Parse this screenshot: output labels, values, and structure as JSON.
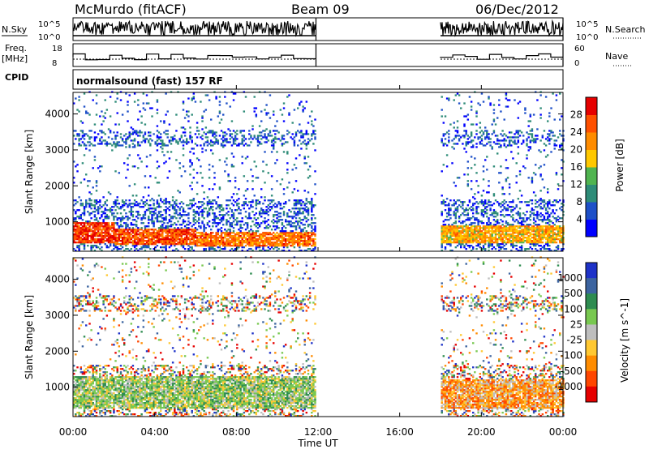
{
  "header": {
    "station": "McMurdo (fitACF)",
    "beam": "Beam 09",
    "date": "06/Dec/2012"
  },
  "nsky_panel": {
    "left_label": "N.Sky",
    "right_label": "N.Search",
    "left_ticks": [
      "10^5",
      "10^0"
    ],
    "right_ticks": [
      "10^5",
      "10^0"
    ]
  },
  "freq_panel": {
    "left_label_1": "Freq.",
    "left_label_2": "[MHz]",
    "right_label": "Nave",
    "left_ticks": [
      "18",
      "8"
    ],
    "right_ticks": [
      "60",
      "0"
    ]
  },
  "cpid": {
    "label": "CPID",
    "value": "normalsound (fast) 157 RF"
  },
  "time_axis": {
    "label": "Time UT",
    "ticks": [
      "00:00",
      "04:00",
      "08:00",
      "12:00",
      "16:00",
      "20:00",
      "00:00"
    ]
  },
  "chart_data": [
    {
      "type": "heatmap",
      "name": "power",
      "ylabel": "Slant Range [km]",
      "yticks": [
        "1000",
        "2000",
        "3000",
        "4000"
      ],
      "ylim": [
        180,
        4600
      ],
      "xlim": [
        0,
        24
      ],
      "data_gap": [
        11.9,
        18.0
      ],
      "colorbar_label": "Power [dB]",
      "colorbar_ticks": [
        "4",
        "8",
        "12",
        "16",
        "20",
        "24",
        "28"
      ],
      "colors": [
        "#0000ff",
        "#1e50c8",
        "#2e8c78",
        "#50b450",
        "#ffc800",
        "#ff8c00",
        "#ff5000",
        "#e60000"
      ],
      "bands": [
        {
          "t0": 0.0,
          "t1": 2.0,
          "r0": 400,
          "r1": 950,
          "value": 26
        },
        {
          "t0": 2.0,
          "t1": 6.0,
          "r0": 350,
          "r1": 800,
          "value": 24
        },
        {
          "t0": 6.0,
          "t1": 11.9,
          "r0": 300,
          "r1": 700,
          "value": 22
        },
        {
          "t0": 18.0,
          "t1": 24.0,
          "r0": 400,
          "r1": 900,
          "value": 18
        }
      ]
    },
    {
      "type": "heatmap",
      "name": "velocity",
      "ylabel": "Slant Range [km]",
      "yticks": [
        "1000",
        "2000",
        "3000",
        "4000"
      ],
      "ylim": [
        180,
        4600
      ],
      "xlim": [
        0,
        24
      ],
      "data_gap": [
        11.9,
        18.0
      ],
      "colorbar_label": "Velocity [m s^-1]",
      "colorbar_ticks": [
        "1000",
        "500",
        "100",
        "25",
        "-25",
        "-100",
        "-500",
        "-1000"
      ],
      "colors": [
        "#1e32c8",
        "#3c64a0",
        "#2e8c50",
        "#78c850",
        "#bebebe",
        "#ffc832",
        "#ff8c00",
        "#ff4600",
        "#e60000"
      ],
      "bands": [
        {
          "t0": 0.0,
          "t1": 11.9,
          "r0": 400,
          "r1": 1300,
          "value": 80
        },
        {
          "t0": 18.0,
          "t1": 24.0,
          "r0": 400,
          "r1": 1200,
          "value": -200
        }
      ]
    }
  ]
}
